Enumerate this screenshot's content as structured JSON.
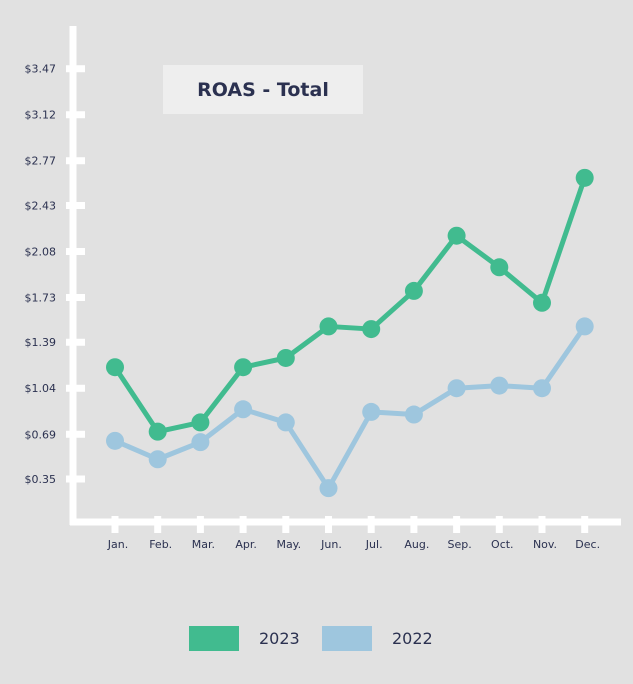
{
  "chart_data": {
    "type": "line",
    "title": "ROAS - Total",
    "categories": [
      "Jan.",
      "Feb.",
      "Mar.",
      "Apr.",
      "May.",
      "Jun.",
      "Jul.",
      "Aug.",
      "Sep.",
      "Oct.",
      "Nov.",
      "Dec."
    ],
    "y_ticks": [
      "$0.35",
      "$0.69",
      "$1.04",
      "$1.39",
      "$1.73",
      "$2.08",
      "$2.43",
      "$2.77",
      "$3.12",
      "$3.47"
    ],
    "ylim": [
      0,
      3.8
    ],
    "grid": false,
    "legend_position": "bottom",
    "series": [
      {
        "name": "2023",
        "color": "#41bb8f",
        "values": [
          1.2,
          0.71,
          0.78,
          1.2,
          1.27,
          1.51,
          1.49,
          1.78,
          2.2,
          1.96,
          1.69,
          2.64
        ]
      },
      {
        "name": "2022",
        "color": "#9ec6de",
        "values": [
          0.64,
          0.5,
          0.63,
          0.88,
          0.78,
          0.28,
          0.86,
          0.84,
          1.04,
          1.06,
          1.04,
          1.51
        ]
      }
    ]
  }
}
